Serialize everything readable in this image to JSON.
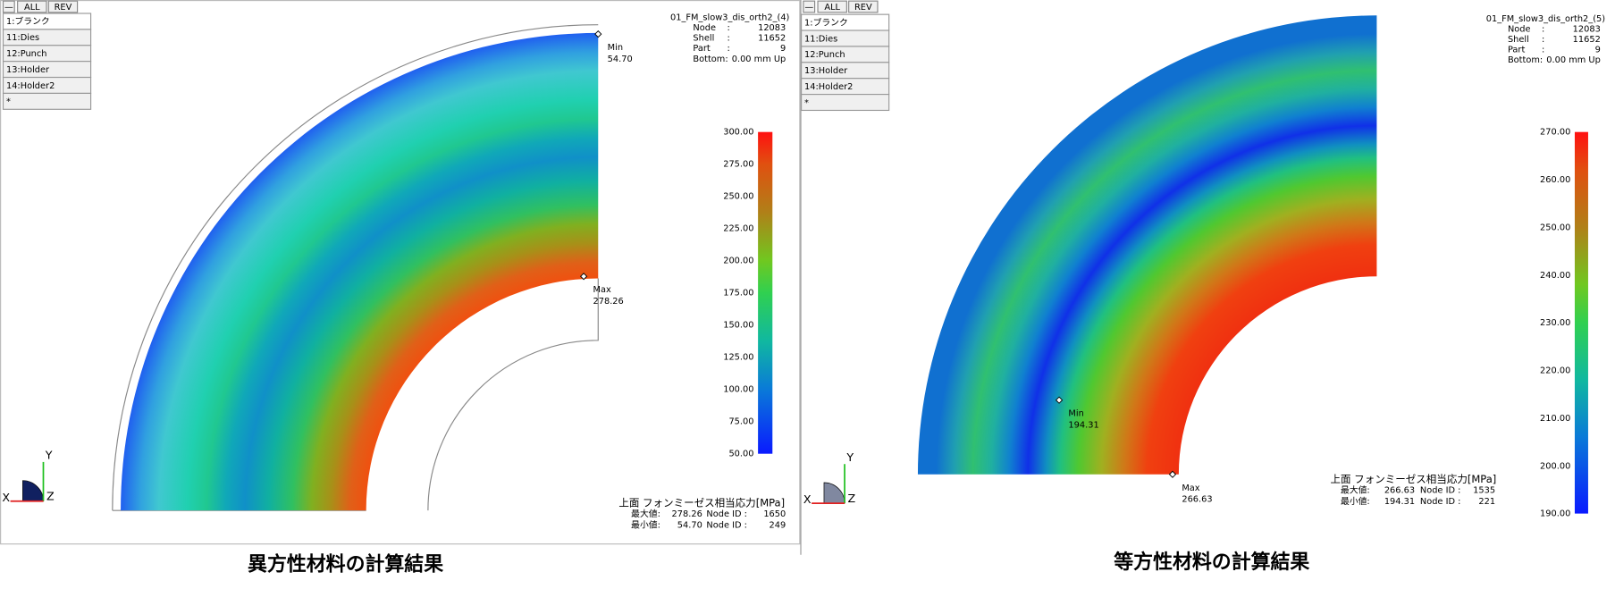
{
  "panels": [
    {
      "toolbar": [
        "—",
        "ALL",
        "REV"
      ],
      "parts": [
        "1:ブランク",
        "11:Dies",
        "12:Punch",
        "13:Holder",
        "14:Holder2",
        "*"
      ],
      "file": "01_FM_slow3_dis_orth2_(4)",
      "info": [
        {
          "label": "Node",
          "sep": ":",
          "value": "12083"
        },
        {
          "label": "Shell",
          "sep": ":",
          "value": "11652"
        },
        {
          "label": "Part",
          "sep": ":",
          "value": "9"
        },
        {
          "label": "Bottom:",
          "value": "0.00 mm Up"
        }
      ],
      "legend": [
        "300.00",
        "275.00",
        "250.00",
        "225.00",
        "200.00",
        "175.00",
        "150.00",
        "125.00",
        "100.00",
        "75.00",
        "50.00"
      ],
      "min": {
        "label": "Min",
        "value": "54.70"
      },
      "max": {
        "label": "Max",
        "value": "278.26"
      },
      "axes": [
        "Y",
        "X",
        "Z"
      ],
      "result_title": "上面 フォンミーゼス相当応力[MPa]",
      "stats": [
        {
          "label": "最大値:",
          "value": "278.26",
          "id_label": "Node ID :",
          "id": "1650"
        },
        {
          "label": "最小値:",
          "value": "54.70",
          "id_label": "Node ID :",
          "id": "249"
        }
      ],
      "caption": "異方性材料の計算結果"
    },
    {
      "toolbar": [
        "—",
        "ALL",
        "REV"
      ],
      "parts": [
        "1:ブランク",
        "11:Dies",
        "12:Punch",
        "13:Holder",
        "14:Holder2",
        "*"
      ],
      "file": "01_FM_slow3_dis_orth2_(5)",
      "info": [
        {
          "label": "Node",
          "sep": ":",
          "value": "12083"
        },
        {
          "label": "Shell",
          "sep": ":",
          "value": "11652"
        },
        {
          "label": "Part",
          "sep": ":",
          "value": "9"
        },
        {
          "label": "Bottom:",
          "value": "0.00 mm Up"
        }
      ],
      "legend": [
        "270.00",
        "260.00",
        "250.00",
        "240.00",
        "230.00",
        "220.00",
        "210.00",
        "200.00",
        "190.00"
      ],
      "min": {
        "label": "Min",
        "value": "194.31"
      },
      "max": {
        "label": "Max",
        "value": "266.63"
      },
      "axes": [
        "Y",
        "X",
        "Z"
      ],
      "result_title": "上面 フォンミーゼス相当応力[MPa]",
      "stats": [
        {
          "label": "最大値:",
          "value": "266.63",
          "id_label": "Node ID :",
          "id": "1535"
        },
        {
          "label": "最小値:",
          "value": "194.31",
          "id_label": "Node ID :",
          "id": "221"
        }
      ],
      "caption": "等方性材料の計算結果"
    }
  ]
}
